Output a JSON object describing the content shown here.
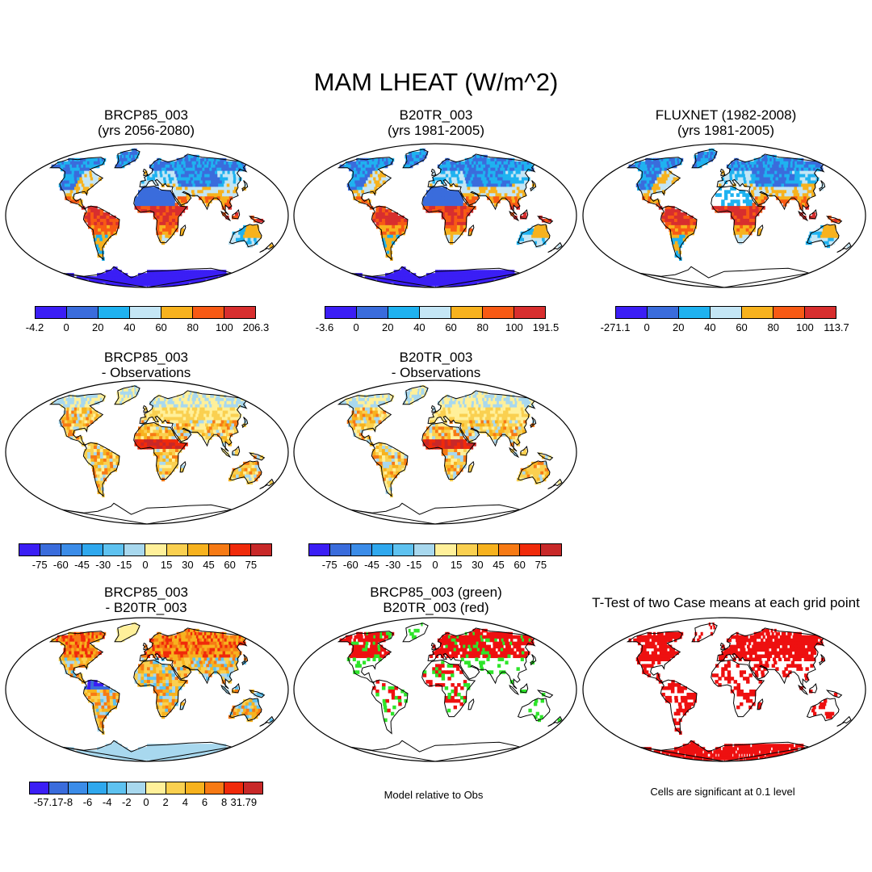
{
  "title": "MAM LHEAT (W/m^2)",
  "colors": {
    "abs": [
      "#3b1ef5",
      "#3a6cdc",
      "#1fb2f0",
      "#c4e6f5",
      "#f7b21e",
      "#f75a14",
      "#d82e2e"
    ],
    "diff12": [
      "#3b1ef5",
      "#3a6cdc",
      "#3b8ce8",
      "#2fa8ee",
      "#5ec2f0",
      "#a8d8ee",
      "#fff09a",
      "#fad050",
      "#f7b21e",
      "#f77a14",
      "#f02a0a",
      "#c82828"
    ],
    "sig_red": "#ee1010",
    "sig_green": "#2ee52a"
  },
  "panels": [
    {
      "id": "p1",
      "title1": "BRCP85_003",
      "title2": "(yrs 2056-2080)",
      "palette": "abs",
      "pattern": "abs_model",
      "antarctica": "#3b1ef5"
    },
    {
      "id": "p2",
      "title1": "B20TR_003",
      "title2": "(yrs 1981-2005)",
      "palette": "abs",
      "pattern": "abs_model",
      "antarctica": "#3b1ef5"
    },
    {
      "id": "p3",
      "title1": "FLUXNET (1982-2008)",
      "title2": "(yrs 1981-2005)",
      "palette": "abs",
      "pattern": "abs_obs",
      "antarctica": "none"
    },
    {
      "id": "p4",
      "title1": "BRCP85_003",
      "title2": "- Observations",
      "palette": "diff12",
      "pattern": "bias",
      "antarctica": "none"
    },
    {
      "id": "p5",
      "title1": "B20TR_003",
      "title2": "- Observations",
      "palette": "diff12",
      "pattern": "bias",
      "antarctica": "none"
    },
    {
      "id": "p7",
      "title1": "BRCP85_003",
      "title2": "- B20TR_003",
      "palette": "diff12",
      "pattern": "model_diff",
      "antarctica": "#a8d8ee"
    },
    {
      "id": "p8",
      "title1": "BRCP85_003 (green)",
      "title2": "B20TR_003 (red)",
      "palette": "sig",
      "pattern": "closer",
      "antarctica": "none"
    },
    {
      "id": "p9",
      "title1": "T-Test of two Case means at each grid point",
      "title2": "",
      "palette": "sig",
      "pattern": "ttest",
      "antarctica": "#ee1010"
    }
  ],
  "colorbars": [
    {
      "id": "cb1",
      "palette": "abs",
      "labels": [
        "-4.2",
        "0",
        "20",
        "40",
        "60",
        "80",
        "100",
        "206.3"
      ]
    },
    {
      "id": "cb2",
      "palette": "abs",
      "labels": [
        "-3.6",
        "0",
        "20",
        "40",
        "60",
        "80",
        "100",
        "191.5"
      ]
    },
    {
      "id": "cb3",
      "palette": "abs",
      "labels": [
        "-271.1",
        "0",
        "20",
        "40",
        "60",
        "80",
        "100",
        "113.7"
      ]
    },
    {
      "id": "cb4",
      "palette": "diff12",
      "labels": [
        "-75",
        "-60",
        "-45",
        "-30",
        "-15",
        "0",
        "15",
        "30",
        "45",
        "60",
        "75"
      ]
    },
    {
      "id": "cb5",
      "palette": "diff12",
      "labels": [
        "-75",
        "-60",
        "-45",
        "-30",
        "-15",
        "0",
        "15",
        "30",
        "45",
        "60",
        "75"
      ]
    },
    {
      "id": "cb7",
      "palette": "diff12",
      "labels": [
        "-57.17",
        "-8",
        "-6",
        "-4",
        "-2",
        "0",
        "2",
        "4",
        "6",
        "8",
        "31.79"
      ]
    }
  ],
  "notes": {
    "closer": "Model relative to Obs",
    "ttest": "Cells are significant at 0.1 level"
  }
}
